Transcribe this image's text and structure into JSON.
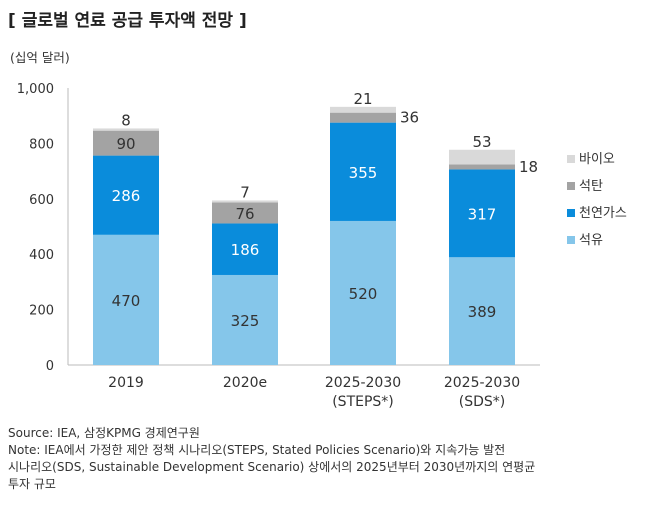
{
  "title": "[ 글로벌 연료 공급 투자액 전망 ]",
  "chart_data": {
    "type": "bar",
    "stacked": true,
    "ylabel": "(십억 달러)",
    "ylim": [
      0,
      1000
    ],
    "yticks": [
      "0",
      "200",
      "400",
      "600",
      "800",
      "1,000"
    ],
    "categories": [
      "2019",
      "2020e",
      "2025-2030\n(STEPS*)",
      "2025-2030\n(SDS*)"
    ],
    "series": [
      {
        "name": "석유",
        "color": "#85C6EA",
        "values": [
          470,
          325,
          520,
          389
        ]
      },
      {
        "name": "천연가스",
        "color": "#0A8CDB",
        "values": [
          286,
          186,
          355,
          317
        ]
      },
      {
        "name": "석탄",
        "color": "#A3A3A3",
        "values": [
          90,
          76,
          36,
          18
        ]
      },
      {
        "name": "바이오",
        "color": "#D9D9D9",
        "values": [
          8,
          7,
          21,
          53
        ]
      }
    ],
    "legend_position": "right",
    "grid": false
  },
  "notes": [
    "Source: IEA, 삼정KPMG 경제연구원",
    "Note: IEA에서 가정한 제안 정책 시나리오(STEPS, Stated Policies Scenario)와 지속가능 발전",
    "시나리오(SDS, Sustainable Development Scenario) 상에서의 2025년부터 2030년까지의 연평균",
    "투자 규모"
  ]
}
